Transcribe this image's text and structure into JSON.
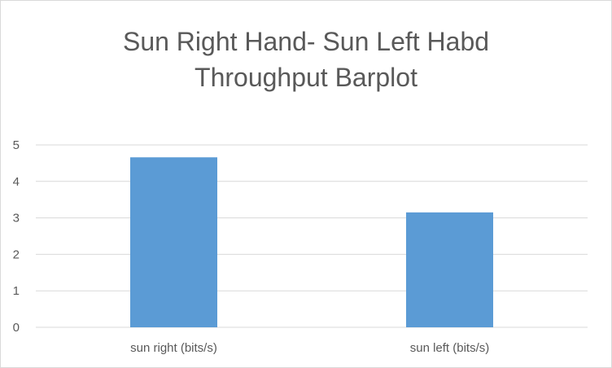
{
  "chart_data": {
    "type": "bar",
    "title_line1": "Sun Right Hand- Sun Left Habd",
    "title_line2": "Throughput Barplot",
    "categories": [
      "sun right (bits/s)",
      "sun left (bits/s)"
    ],
    "values": [
      4.66,
      3.15
    ],
    "ylim": [
      0,
      5
    ],
    "yticks": [
      "0",
      "1",
      "2",
      "3",
      "4",
      "5"
    ],
    "grid": true,
    "legend": "none",
    "colors": {
      "bar": "#5b9bd5",
      "grid": "#d9d9d9",
      "text": "#595959"
    }
  }
}
